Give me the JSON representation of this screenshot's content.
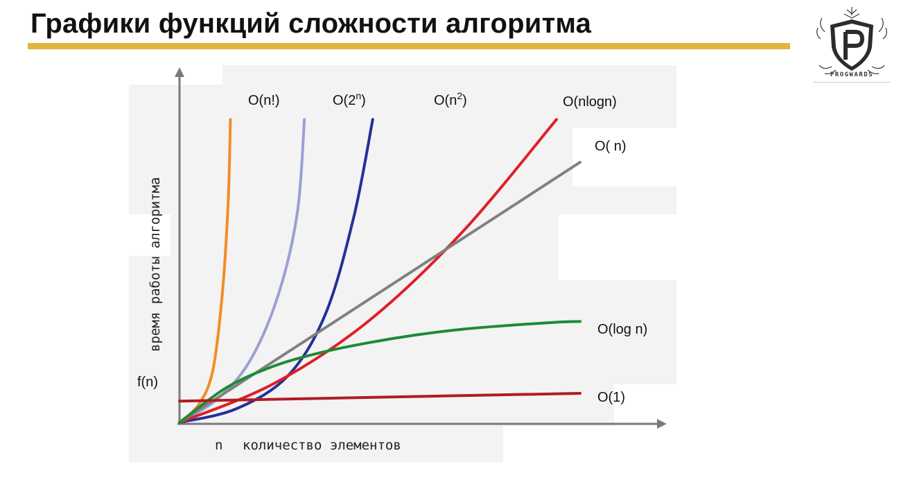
{
  "slide": {
    "title": "Графики функций сложности алгоритма",
    "accent_color": "#e0b53a",
    "logo_text": "PROGWARDS",
    "logo_icon": "shield-p-logo-icon"
  },
  "chart_data": {
    "type": "line",
    "xlabel": "количество элементов",
    "ylabel": "время работы алгоритма",
    "x_axis_marker": "n",
    "y_axis_marker": "f(n)",
    "grid": false,
    "x": [
      0,
      1,
      2,
      3,
      4,
      5,
      6,
      7,
      8,
      9,
      10
    ],
    "series": [
      {
        "name": "O(n!)",
        "label_base": "O(n!)",
        "label_sup": "",
        "color": "#f28c28",
        "points": [
          [
            0,
            0
          ],
          [
            0.4,
            0.45
          ],
          [
            0.7,
            1.3
          ],
          [
            0.9,
            3.2
          ],
          [
            1.03,
            5.6
          ],
          [
            1.08,
            7.8
          ]
        ]
      },
      {
        "name": "O(2^n)",
        "label_base": "O(2",
        "label_sup": "n",
        "label_close": ")",
        "color": "#9b9fd4",
        "points": [
          [
            0,
            0
          ],
          [
            0.8,
            0.6
          ],
          [
            1.5,
            1.6
          ],
          [
            2.1,
            3.3
          ],
          [
            2.5,
            5.4
          ],
          [
            2.65,
            7.8
          ]
        ]
      },
      {
        "name": "O(n^2)",
        "label_base": "O(n",
        "label_sup": "2",
        "label_close": ")",
        "color": "#23309a",
        "points": [
          [
            0,
            0
          ],
          [
            1.2,
            0.35
          ],
          [
            2.3,
            1.2
          ],
          [
            3.1,
            2.8
          ],
          [
            3.7,
            5.3
          ],
          [
            4.1,
            7.8
          ]
        ]
      },
      {
        "name": "O(nlogn)",
        "label_base": "O(nlogn)",
        "label_sup": "",
        "color": "#e02025",
        "points": [
          [
            0,
            0
          ],
          [
            2,
            1.0
          ],
          [
            4,
            2.6
          ],
          [
            6,
            4.9
          ],
          [
            8,
            7.8
          ]
        ]
      },
      {
        "name": "O(n)",
        "label_base": "O( n)",
        "label_sup": "",
        "color": "#808080",
        "points": [
          [
            0,
            0
          ],
          [
            8.5,
            6.7
          ]
        ]
      },
      {
        "name": "O(log n)",
        "label_base": "O(log n)",
        "label_sup": "",
        "color": "#1e8a36",
        "points": [
          [
            0,
            0
          ],
          [
            1,
            0.9
          ],
          [
            2,
            1.45
          ],
          [
            3,
            1.8
          ],
          [
            4,
            2.05
          ],
          [
            5,
            2.25
          ],
          [
            6,
            2.4
          ],
          [
            7,
            2.5
          ],
          [
            8,
            2.58
          ],
          [
            8.5,
            2.6
          ]
        ]
      },
      {
        "name": "O(1)",
        "label_base": "O(1)",
        "label_sup": "",
        "color": "#b01c22",
        "points": [
          [
            0,
            0.55
          ],
          [
            8.5,
            0.75
          ]
        ]
      }
    ]
  }
}
